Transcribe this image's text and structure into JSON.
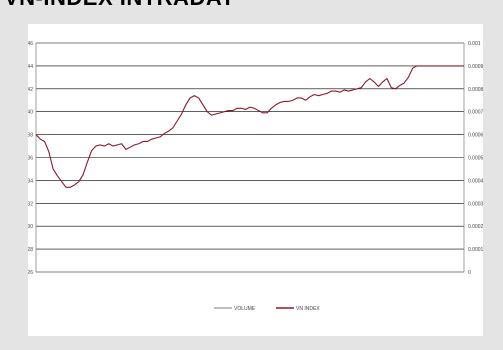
{
  "title": "VN-INDEX INTRADAY",
  "colors": {
    "background": "#e4e4e4",
    "panel": "#ffffff",
    "vnindex": "#8b1a2a",
    "volume": "#a9a9a9",
    "grid": "#000000"
  },
  "chart_data": {
    "type": "line",
    "title": "VN-INDEX INTRADAY",
    "ylim": [
      526,
      546
    ],
    "y_ticks": [
      "526",
      "528",
      "530",
      "532",
      "534",
      "536",
      "538",
      "540",
      "542",
      "544",
      "546"
    ],
    "y2lim": [
      0,
      0.001
    ],
    "y2_ticks": [
      "0",
      "0.0001",
      "0.0002",
      "0.0003",
      "0.0004",
      "0.0005",
      "0.0006",
      "0.0007",
      "0.0008",
      "0.0009",
      "0.001"
    ],
    "grid": true,
    "legend_position": "bottom",
    "series": [
      {
        "name": "VOLUME",
        "axis": "right",
        "values": []
      },
      {
        "name": "VN INDEX",
        "axis": "left",
        "x": [
          0,
          1,
          2,
          3,
          4,
          5,
          6,
          7,
          8,
          9,
          10,
          11,
          12,
          13,
          14,
          15,
          16,
          17,
          18,
          19,
          20,
          21,
          22,
          23,
          24,
          25,
          26,
          27,
          28,
          29,
          30,
          31,
          32,
          33,
          34,
          35,
          36,
          37,
          38,
          39,
          40,
          41,
          42,
          43,
          44,
          45,
          46,
          47,
          48,
          49,
          50,
          51,
          52,
          53,
          54,
          55,
          56,
          57,
          58,
          59,
          60,
          61,
          62,
          63,
          64,
          65,
          66,
          67,
          68,
          69,
          70,
          71,
          72,
          73,
          74,
          75,
          76,
          77,
          78,
          79,
          80,
          81,
          82,
          83,
          84,
          85,
          86,
          87,
          88,
          89,
          90,
          91,
          92,
          93,
          94,
          95,
          96,
          97,
          98,
          99,
          100
        ],
        "values": [
          538.0,
          537.6,
          537.4,
          536.5,
          535.0,
          534.4,
          533.9,
          533.4,
          533.4,
          533.6,
          533.9,
          534.5,
          535.6,
          536.6,
          537.0,
          537.1,
          537.0,
          537.2,
          537.0,
          537.1,
          537.2,
          536.7,
          536.9,
          537.1,
          537.2,
          537.4,
          537.4,
          537.6,
          537.7,
          537.8,
          538.1,
          538.3,
          538.6,
          539.2,
          539.8,
          540.6,
          541.2,
          541.4,
          541.2,
          540.6,
          540.0,
          539.7,
          539.8,
          539.9,
          540.0,
          540.1,
          540.1,
          540.3,
          540.3,
          540.2,
          540.4,
          540.3,
          540.1,
          539.9,
          539.9,
          540.3,
          540.6,
          540.8,
          540.9,
          540.9,
          541.0,
          541.2,
          541.2,
          541.0,
          541.3,
          541.5,
          541.4,
          541.5,
          541.6,
          541.8,
          541.8,
          541.7,
          541.9,
          541.8,
          541.9,
          542.0,
          542.1,
          542.6,
          542.9,
          542.6,
          542.2,
          542.6,
          542.9,
          542.1,
          542.0,
          542.3,
          542.5,
          543.0,
          543.8,
          544.0,
          544.0,
          544.0,
          544.0,
          544.0,
          544.0,
          544.0,
          544.0,
          544.0,
          544.0,
          544.0,
          544.0
        ]
      }
    ]
  }
}
